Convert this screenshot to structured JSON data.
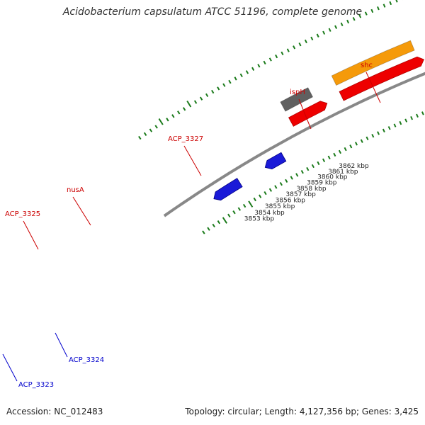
{
  "title": "Acidobacterium capsulatum ATCC 51196, complete genome",
  "footer": {
    "accession": "Accession: NC_012483",
    "summary": "Topology: circular; Length: 4,127,356 bp; Genes: 3,425"
  },
  "colors": {
    "background": "#ffffff",
    "backbone": "#888888",
    "tick": "#1a7a1a",
    "forward_label": "#cc0000",
    "reverse_label": "#0000cc",
    "cds": "#ee0000",
    "gene_gray": "#606060",
    "gene_orange": "#f59a0a",
    "gene_pink": "#f08a8a",
    "gene_olive": "#6b8e23",
    "gene_purple": "#7b68ee",
    "gene_blue": "#1a1ad8"
  },
  "axis": {
    "unit": "kbp",
    "scale_labels": [
      "3853 kbp",
      "3854 kbp",
      "3855 kbp",
      "3856 kbp",
      "3857 kbp",
      "3858 kbp",
      "3859 kbp",
      "3860 kbp",
      "3861 kbp",
      "3862 kbp"
    ]
  },
  "genes_forward": [
    {
      "label": "ACP_3325",
      "feature_color": "gene_gray"
    },
    {
      "label": "nusA",
      "feature_color": "gene_orange"
    },
    {
      "label": "ACP_3327",
      "feature_color": "gene_pink"
    },
    {
      "label": "ispH",
      "feature_color": "gene_olive"
    },
    {
      "label": "shc",
      "feature_color": "gene_purple"
    }
  ],
  "genes_reverse": [
    {
      "label": "ACP_3324",
      "feature_color": "gene_blue"
    },
    {
      "label": "ACP_3323",
      "feature_color": "gene_blue"
    }
  ]
}
